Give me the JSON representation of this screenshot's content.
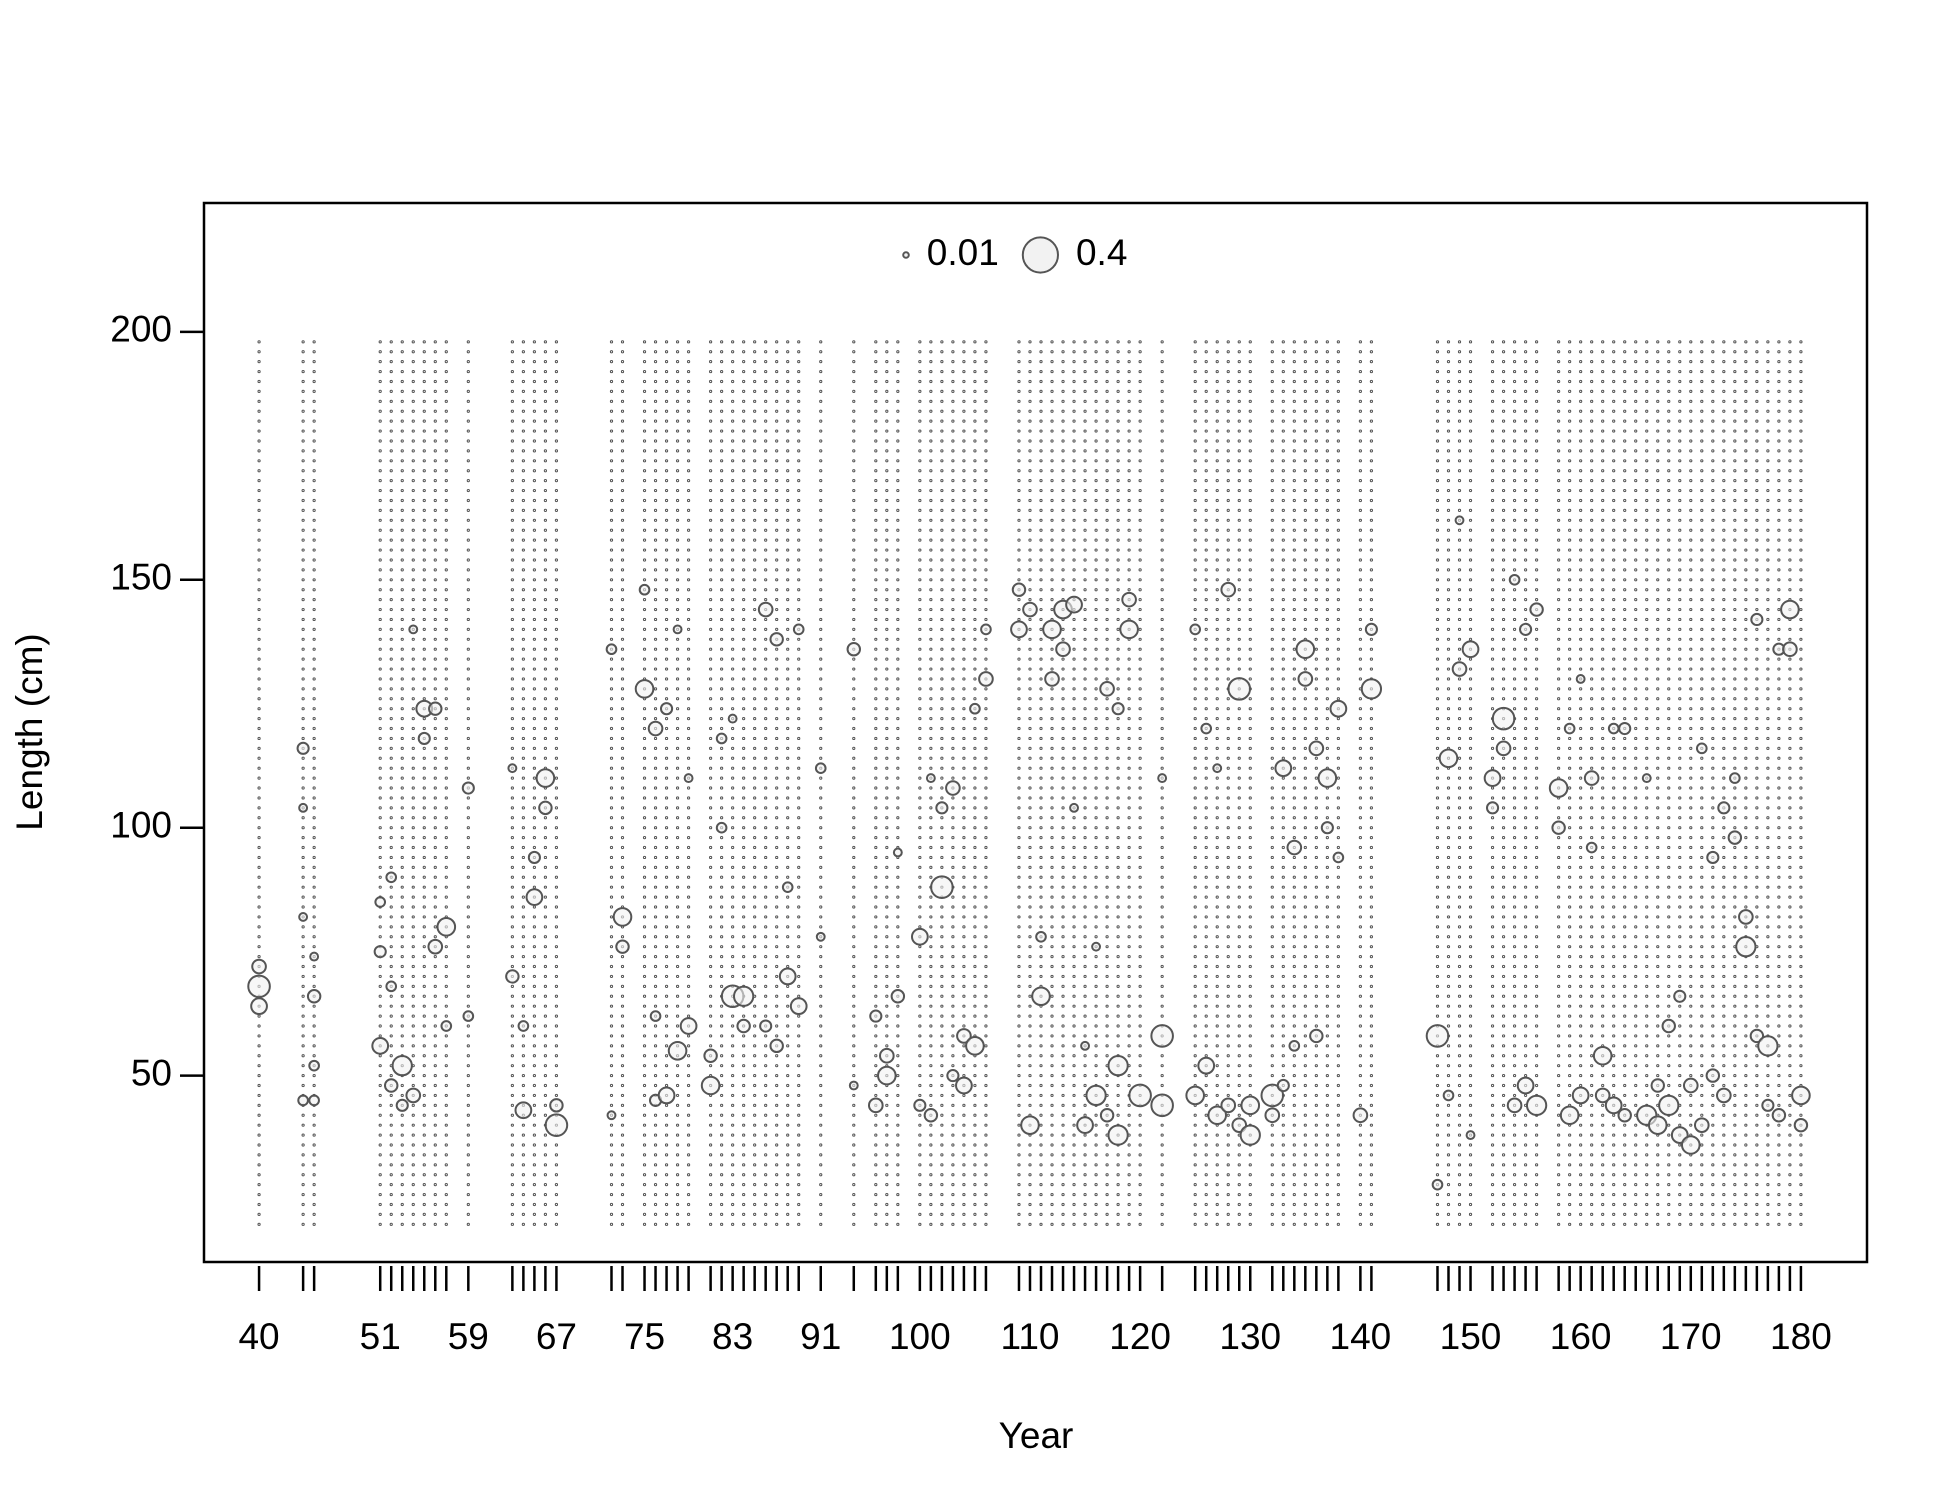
{
  "chart_data": {
    "type": "bubble",
    "xlabel": "Year",
    "ylabel": "Length (cm)",
    "xlim": [
      35,
      186
    ],
    "ylim": [
      12.4,
      226
    ],
    "xticks": [
      40,
      51,
      59,
      67,
      75,
      83,
      91,
      100,
      110,
      120,
      130,
      140,
      150,
      160,
      170,
      180
    ],
    "yticks": [
      50,
      100,
      150,
      200
    ],
    "legend": {
      "sizes": [
        0.01,
        0.4
      ],
      "position": "top"
    },
    "color": "#555555",
    "years": [
      40,
      44,
      45,
      51,
      52,
      53,
      54,
      55,
      56,
      57,
      59,
      63,
      64,
      65,
      66,
      67,
      72,
      73,
      75,
      76,
      77,
      78,
      79,
      81,
      82,
      83,
      84,
      85,
      86,
      87,
      88,
      89,
      91,
      94,
      96,
      97,
      98,
      100,
      101,
      102,
      103,
      104,
      105,
      106,
      109,
      110,
      111,
      112,
      113,
      114,
      115,
      116,
      117,
      118,
      119,
      120,
      122,
      125,
      126,
      127,
      128,
      129,
      130,
      132,
      133,
      134,
      135,
      136,
      137,
      138,
      140,
      141,
      147,
      148,
      149,
      150,
      152,
      153,
      154,
      155,
      156,
      158,
      159,
      160,
      161,
      162,
      163,
      164,
      165,
      166,
      167,
      168,
      169,
      170,
      171,
      172,
      173,
      174,
      175,
      176,
      177,
      178,
      179,
      180
    ],
    "length_bins": [
      20,
      22,
      24,
      26,
      28,
      30,
      32,
      34,
      36,
      38,
      40,
      42,
      44,
      46,
      48,
      50,
      52,
      54,
      56,
      58,
      60,
      62,
      64,
      66,
      68,
      70,
      72,
      74,
      76,
      78,
      80,
      82,
      84,
      86,
      88,
      90,
      92,
      94,
      96,
      98,
      100,
      102,
      104,
      106,
      108,
      110,
      112,
      114,
      116,
      118,
      120,
      122,
      124,
      126,
      128,
      130,
      132,
      134,
      136,
      138,
      140,
      142,
      144,
      146,
      148,
      150,
      152,
      154,
      156,
      158,
      160,
      162,
      164,
      166,
      168,
      170,
      172,
      174,
      176,
      178,
      180,
      182,
      184,
      186,
      188,
      190,
      192,
      194,
      196,
      198
    ],
    "bubbles": [
      {
        "year": 40,
        "lengths": [
          68,
          64,
          72
        ],
        "sizes": [
          0.15,
          0.08,
          0.06
        ]
      },
      {
        "year": 44,
        "lengths": [
          116,
          104,
          45,
          82
        ],
        "sizes": [
          0.04,
          0.02,
          0.03,
          0.02
        ]
      },
      {
        "year": 45,
        "lengths": [
          66,
          52,
          45,
          74
        ],
        "sizes": [
          0.05,
          0.03,
          0.03,
          0.02
        ]
      },
      {
        "year": 51,
        "lengths": [
          56,
          75,
          85
        ],
        "sizes": [
          0.08,
          0.04,
          0.03
        ]
      },
      {
        "year": 52,
        "lengths": [
          48,
          90,
          68
        ],
        "sizes": [
          0.05,
          0.03,
          0.03
        ]
      },
      {
        "year": 53,
        "lengths": [
          52,
          44
        ],
        "sizes": [
          0.12,
          0.04
        ]
      },
      {
        "year": 54,
        "lengths": [
          46,
          140
        ],
        "sizes": [
          0.06,
          0.02
        ]
      },
      {
        "year": 55,
        "lengths": [
          124,
          118
        ],
        "sizes": [
          0.08,
          0.04
        ]
      },
      {
        "year": 56,
        "lengths": [
          124,
          76
        ],
        "sizes": [
          0.05,
          0.06
        ]
      },
      {
        "year": 57,
        "lengths": [
          80,
          60
        ],
        "sizes": [
          0.1,
          0.03
        ]
      },
      {
        "year": 59,
        "lengths": [
          108,
          62
        ],
        "sizes": [
          0.04,
          0.03
        ]
      },
      {
        "year": 63,
        "lengths": [
          70,
          112
        ],
        "sizes": [
          0.05,
          0.02
        ]
      },
      {
        "year": 64,
        "lengths": [
          43,
          60
        ],
        "sizes": [
          0.08,
          0.03
        ]
      },
      {
        "year": 65,
        "lengths": [
          86,
          94
        ],
        "sizes": [
          0.08,
          0.04
        ]
      },
      {
        "year": 66,
        "lengths": [
          110,
          104
        ],
        "sizes": [
          0.1,
          0.05
        ]
      },
      {
        "year": 67,
        "lengths": [
          40,
          44
        ],
        "sizes": [
          0.15,
          0.05
        ]
      },
      {
        "year": 72,
        "lengths": [
          136,
          42
        ],
        "sizes": [
          0.03,
          0.02
        ]
      },
      {
        "year": 73,
        "lengths": [
          82,
          76
        ],
        "sizes": [
          0.1,
          0.05
        ]
      },
      {
        "year": 75,
        "lengths": [
          128,
          148
        ],
        "sizes": [
          0.1,
          0.03
        ]
      },
      {
        "year": 76,
        "lengths": [
          120,
          62,
          45
        ],
        "sizes": [
          0.06,
          0.03,
          0.04
        ]
      },
      {
        "year": 77,
        "lengths": [
          46,
          124
        ],
        "sizes": [
          0.08,
          0.04
        ]
      },
      {
        "year": 78,
        "lengths": [
          55,
          140
        ],
        "sizes": [
          0.1,
          0.02
        ]
      },
      {
        "year": 79,
        "lengths": [
          60,
          110
        ],
        "sizes": [
          0.08,
          0.02
        ]
      },
      {
        "year": 81,
        "lengths": [
          48,
          54
        ],
        "sizes": [
          0.1,
          0.05
        ]
      },
      {
        "year": 82,
        "lengths": [
          100,
          118
        ],
        "sizes": [
          0.03,
          0.03
        ]
      },
      {
        "year": 83,
        "lengths": [
          66,
          122
        ],
        "sizes": [
          0.15,
          0.02
        ]
      },
      {
        "year": 84,
        "lengths": [
          66,
          60
        ],
        "sizes": [
          0.12,
          0.05
        ]
      },
      {
        "year": 86,
        "lengths": [
          144,
          60
        ],
        "sizes": [
          0.06,
          0.04
        ]
      },
      {
        "year": 87,
        "lengths": [
          138,
          56
        ],
        "sizes": [
          0.05,
          0.05
        ]
      },
      {
        "year": 88,
        "lengths": [
          70,
          88
        ],
        "sizes": [
          0.08,
          0.03
        ]
      },
      {
        "year": 89,
        "lengths": [
          64,
          140
        ],
        "sizes": [
          0.08,
          0.03
        ]
      },
      {
        "year": 91,
        "lengths": [
          112,
          78
        ],
        "sizes": [
          0.03,
          0.02
        ]
      },
      {
        "year": 94,
        "lengths": [
          136,
          48
        ],
        "sizes": [
          0.05,
          0.02
        ]
      },
      {
        "year": 96,
        "lengths": [
          44,
          62
        ],
        "sizes": [
          0.06,
          0.04
        ]
      },
      {
        "year": 97,
        "lengths": [
          50,
          54
        ],
        "sizes": [
          0.1,
          0.06
        ]
      },
      {
        "year": 98,
        "lengths": [
          66,
          95
        ],
        "sizes": [
          0.05,
          0.02
        ]
      },
      {
        "year": 100,
        "lengths": [
          78,
          44
        ],
        "sizes": [
          0.08,
          0.04
        ]
      },
      {
        "year": 101,
        "lengths": [
          42,
          110
        ],
        "sizes": [
          0.05,
          0.02
        ]
      },
      {
        "year": 102,
        "lengths": [
          88,
          104
        ],
        "sizes": [
          0.15,
          0.04
        ]
      },
      {
        "year": 103,
        "lengths": [
          108,
          50
        ],
        "sizes": [
          0.06,
          0.04
        ]
      },
      {
        "year": 104,
        "lengths": [
          48,
          58
        ],
        "sizes": [
          0.08,
          0.06
        ]
      },
      {
        "year": 105,
        "lengths": [
          56,
          124
        ],
        "sizes": [
          0.1,
          0.03
        ]
      },
      {
        "year": 106,
        "lengths": [
          130,
          140
        ],
        "sizes": [
          0.06,
          0.03
        ]
      },
      {
        "year": 109,
        "lengths": [
          140,
          148
        ],
        "sizes": [
          0.08,
          0.05
        ]
      },
      {
        "year": 110,
        "lengths": [
          40,
          144
        ],
        "sizes": [
          0.1,
          0.06
        ]
      },
      {
        "year": 111,
        "lengths": [
          66,
          78
        ],
        "sizes": [
          0.1,
          0.03
        ]
      },
      {
        "year": 112,
        "lengths": [
          140,
          130
        ],
        "sizes": [
          0.1,
          0.06
        ]
      },
      {
        "year": 113,
        "lengths": [
          144,
          136
        ],
        "sizes": [
          0.1,
          0.06
        ]
      },
      {
        "year": 114,
        "lengths": [
          145,
          104
        ],
        "sizes": [
          0.08,
          0.02
        ]
      },
      {
        "year": 115,
        "lengths": [
          40,
          56
        ],
        "sizes": [
          0.08,
          0.02
        ]
      },
      {
        "year": 116,
        "lengths": [
          46,
          76
        ],
        "sizes": [
          0.12,
          0.02
        ]
      },
      {
        "year": 117,
        "lengths": [
          128,
          42
        ],
        "sizes": [
          0.06,
          0.05
        ]
      },
      {
        "year": 118,
        "lengths": [
          52,
          38,
          124
        ],
        "sizes": [
          0.12,
          0.12,
          0.04
        ]
      },
      {
        "year": 119,
        "lengths": [
          140,
          146
        ],
        "sizes": [
          0.1,
          0.06
        ]
      },
      {
        "year": 120,
        "lengths": [
          46
        ],
        "sizes": [
          0.15
        ]
      },
      {
        "year": 122,
        "lengths": [
          58,
          44,
          110
        ],
        "sizes": [
          0.15,
          0.15,
          0.02
        ]
      },
      {
        "year": 125,
        "lengths": [
          46,
          140
        ],
        "sizes": [
          0.1,
          0.03
        ]
      },
      {
        "year": 126,
        "lengths": [
          52,
          120
        ],
        "sizes": [
          0.08,
          0.03
        ]
      },
      {
        "year": 127,
        "lengths": [
          42,
          112
        ],
        "sizes": [
          0.1,
          0.02
        ]
      },
      {
        "year": 128,
        "lengths": [
          148,
          44
        ],
        "sizes": [
          0.06,
          0.06
        ]
      },
      {
        "year": 129,
        "lengths": [
          128,
          40
        ],
        "sizes": [
          0.15,
          0.06
        ]
      },
      {
        "year": 130,
        "lengths": [
          38,
          44
        ],
        "sizes": [
          0.12,
          0.1
        ]
      },
      {
        "year": 132,
        "lengths": [
          46,
          42
        ],
        "sizes": [
          0.15,
          0.06
        ]
      },
      {
        "year": 133,
        "lengths": [
          112,
          48
        ],
        "sizes": [
          0.08,
          0.04
        ]
      },
      {
        "year": 134,
        "lengths": [
          96,
          56
        ],
        "sizes": [
          0.06,
          0.03
        ]
      },
      {
        "year": 135,
        "lengths": [
          136,
          130
        ],
        "sizes": [
          0.1,
          0.06
        ]
      },
      {
        "year": 136,
        "lengths": [
          58,
          116
        ],
        "sizes": [
          0.05,
          0.06
        ]
      },
      {
        "year": 137,
        "lengths": [
          110,
          100
        ],
        "sizes": [
          0.1,
          0.04
        ]
      },
      {
        "year": 138,
        "lengths": [
          124,
          94
        ],
        "sizes": [
          0.08,
          0.03
        ]
      },
      {
        "year": 140,
        "lengths": [
          42
        ],
        "sizes": [
          0.06
        ]
      },
      {
        "year": 141,
        "lengths": [
          128,
          140
        ],
        "sizes": [
          0.12,
          0.04
        ]
      },
      {
        "year": 147,
        "lengths": [
          58,
          28
        ],
        "sizes": [
          0.15,
          0.03
        ]
      },
      {
        "year": 148,
        "lengths": [
          114,
          46
        ],
        "sizes": [
          0.1,
          0.03
        ]
      },
      {
        "year": 149,
        "lengths": [
          132,
          162
        ],
        "sizes": [
          0.06,
          0.02
        ]
      },
      {
        "year": 150,
        "lengths": [
          136,
          38
        ],
        "sizes": [
          0.08,
          0.02
        ]
      },
      {
        "year": 152,
        "lengths": [
          110,
          104
        ],
        "sizes": [
          0.08,
          0.04
        ]
      },
      {
        "year": 153,
        "lengths": [
          122,
          116
        ],
        "sizes": [
          0.15,
          0.06
        ]
      },
      {
        "year": 154,
        "lengths": [
          44,
          150
        ],
        "sizes": [
          0.06,
          0.03
        ]
      },
      {
        "year": 155,
        "lengths": [
          48,
          140
        ],
        "sizes": [
          0.08,
          0.04
        ]
      },
      {
        "year": 156,
        "lengths": [
          44,
          144
        ],
        "sizes": [
          0.12,
          0.05
        ]
      },
      {
        "year": 158,
        "lengths": [
          108,
          100
        ],
        "sizes": [
          0.1,
          0.05
        ]
      },
      {
        "year": 159,
        "lengths": [
          42,
          120
        ],
        "sizes": [
          0.1,
          0.03
        ]
      },
      {
        "year": 160,
        "lengths": [
          46,
          130
        ],
        "sizes": [
          0.08,
          0.02
        ]
      },
      {
        "year": 161,
        "lengths": [
          110,
          96
        ],
        "sizes": [
          0.06,
          0.03
        ]
      },
      {
        "year": 162,
        "lengths": [
          54,
          46
        ],
        "sizes": [
          0.1,
          0.06
        ]
      },
      {
        "year": 163,
        "lengths": [
          44,
          120
        ],
        "sizes": [
          0.08,
          0.03
        ]
      },
      {
        "year": 164,
        "lengths": [
          120,
          42
        ],
        "sizes": [
          0.04,
          0.05
        ]
      },
      {
        "year": 166,
        "lengths": [
          42,
          110
        ],
        "sizes": [
          0.12,
          0.02
        ]
      },
      {
        "year": 167,
        "lengths": [
          40,
          48
        ],
        "sizes": [
          0.1,
          0.05
        ]
      },
      {
        "year": 168,
        "lengths": [
          44,
          60
        ],
        "sizes": [
          0.12,
          0.05
        ]
      },
      {
        "year": 169,
        "lengths": [
          38,
          66
        ],
        "sizes": [
          0.08,
          0.04
        ]
      },
      {
        "year": 170,
        "lengths": [
          36,
          48
        ],
        "sizes": [
          0.1,
          0.06
        ]
      },
      {
        "year": 171,
        "lengths": [
          40,
          116
        ],
        "sizes": [
          0.06,
          0.03
        ]
      },
      {
        "year": 172,
        "lengths": [
          50,
          94
        ],
        "sizes": [
          0.05,
          0.04
        ]
      },
      {
        "year": 173,
        "lengths": [
          46,
          104
        ],
        "sizes": [
          0.06,
          0.04
        ]
      },
      {
        "year": 174,
        "lengths": [
          98,
          110
        ],
        "sizes": [
          0.05,
          0.03
        ]
      },
      {
        "year": 175,
        "lengths": [
          76,
          82
        ],
        "sizes": [
          0.12,
          0.06
        ]
      },
      {
        "year": 176,
        "lengths": [
          142,
          58
        ],
        "sizes": [
          0.04,
          0.05
        ]
      },
      {
        "year": 177,
        "lengths": [
          56,
          44
        ],
        "sizes": [
          0.12,
          0.04
        ]
      },
      {
        "year": 178,
        "lengths": [
          42,
          136
        ],
        "sizes": [
          0.05,
          0.04
        ]
      },
      {
        "year": 179,
        "lengths": [
          144,
          136
        ],
        "sizes": [
          0.1,
          0.06
        ]
      },
      {
        "year": 180,
        "lengths": [
          46,
          40
        ],
        "sizes": [
          0.1,
          0.05
        ]
      }
    ]
  }
}
